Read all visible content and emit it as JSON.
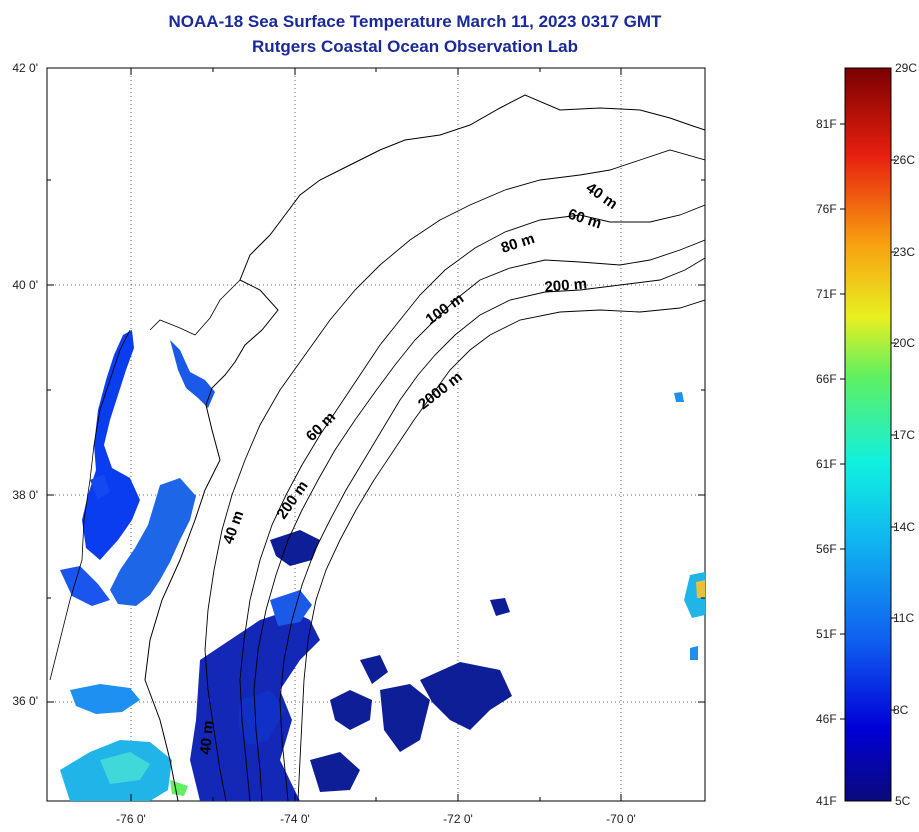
{
  "title": {
    "line1": "NOAA-18 Sea Surface Temperature March 11, 2023 0317 GMT",
    "line2": "Rutgers Coastal Ocean Observation Lab"
  },
  "map": {
    "lat_labels": [
      "42 0'",
      "40 0'",
      "38 0'",
      "36 0'"
    ],
    "lon_labels": [
      "-76 0'",
      "-74 0'",
      "-72 0'",
      "-70 0'"
    ],
    "lat_range": [
      35,
      42
    ],
    "lon_range": [
      -77,
      -69
    ],
    "gridlines": true,
    "isobath_labels": [
      "40 m",
      "60 m",
      "80 m",
      "200 m",
      "100 m",
      "2000 m",
      "60 m",
      "200 m",
      "40 m",
      "40 m"
    ]
  },
  "colorbar": {
    "celsius_labels": [
      "29C",
      "26C",
      "23C",
      "20C",
      "17C",
      "14C",
      "11C",
      "8C",
      "5C"
    ],
    "fahrenheit_labels": [
      "81F",
      "76F",
      "71F",
      "66F",
      "61F",
      "56F",
      "51F",
      "46F",
      "41F"
    ],
    "range_c": [
      5,
      29
    ],
    "colors": [
      "#0a0a7a",
      "#0000d8",
      "#1060f0",
      "#10b8f0",
      "#10f0e0",
      "#60f060",
      "#e8f020",
      "#f8a010",
      "#e82010",
      "#7a0000"
    ]
  }
}
